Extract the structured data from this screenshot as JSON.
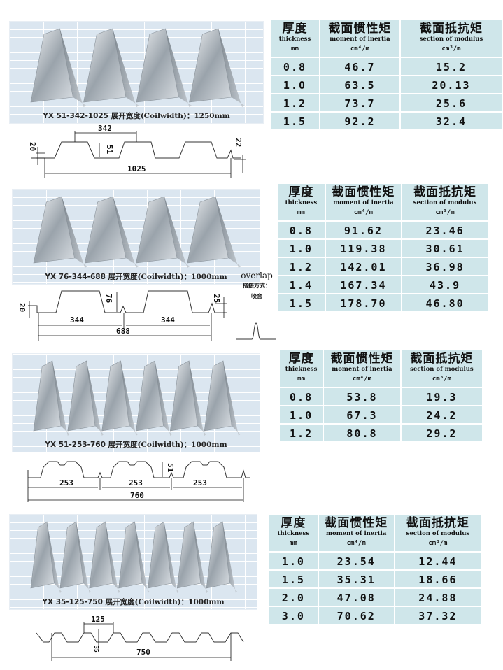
{
  "table_header": {
    "col1_zh": "厚度",
    "col1_en": "thickness",
    "col1_unit": "mm",
    "col2_zh": "截面惯性矩",
    "col2_en": "moment of inertia",
    "col2_unit": "cm⁴/m",
    "col3_zh": "截面抵抗矩",
    "col3_en": "section of modulus",
    "col3_unit": "cm³/m"
  },
  "sections": [
    {
      "caption_model": "YX 51-342-1025 展开宽度",
      "caption_en": "(Coilwidth)：1250mm",
      "rows": [
        [
          "0.8",
          "46.7",
          "15.2"
        ],
        [
          "1.0",
          "63.5",
          "20.13"
        ],
        [
          "1.2",
          "73.7",
          "25.6"
        ],
        [
          "1.5",
          "92.2",
          "32.4"
        ]
      ],
      "dims": {
        "pitch": "342",
        "total": "1025",
        "height": "51",
        "left": "20",
        "right": "22"
      }
    },
    {
      "caption_model": "YX 76-344-688 展开宽度",
      "caption_en": "(Coilwidth)：1000mm",
      "rows": [
        [
          "0.8",
          "91.62",
          "23.46"
        ],
        [
          "1.0",
          "119.38",
          "30.61"
        ],
        [
          "1.2",
          "142.01",
          "36.98"
        ],
        [
          "1.4",
          "167.34",
          "43.9"
        ],
        [
          "1.5",
          "178.70",
          "46.80"
        ]
      ],
      "dims": {
        "pitch1": "344",
        "pitch2": "344",
        "total": "688",
        "height": "76",
        "left": "20",
        "right": "25"
      },
      "overlap": {
        "title": "overlap",
        "label": "搭接方式：",
        "type": "咬合"
      }
    },
    {
      "caption_model": "YX 51-253-760 展开宽度",
      "caption_en": "(Coilwidth)：1000mm",
      "rows": [
        [
          "0.8",
          "53.8",
          "19.3"
        ],
        [
          "1.0",
          "67.3",
          "24.2"
        ],
        [
          "1.2",
          "80.8",
          "29.2"
        ]
      ],
      "dims": {
        "pitch1": "253",
        "pitch2": "253",
        "pitch3": "253",
        "total": "760",
        "height": "51"
      }
    },
    {
      "caption_model": "YX 35-125-750 展开宽度",
      "caption_en": "(Coilwidth)：1000mm",
      "rows": [
        [
          "1.0",
          "23.54",
          "12.44"
        ],
        [
          "1.5",
          "35.31",
          "18.66"
        ],
        [
          "2.0",
          "47.08",
          "24.88"
        ],
        [
          "3.0",
          "70.62",
          "37.32"
        ]
      ],
      "dims": {
        "pitch": "125",
        "total": "750",
        "height": "35"
      }
    }
  ],
  "colors": {
    "table_bg": "#cfe6ea",
    "photo_bg": "#dbe6f0"
  }
}
